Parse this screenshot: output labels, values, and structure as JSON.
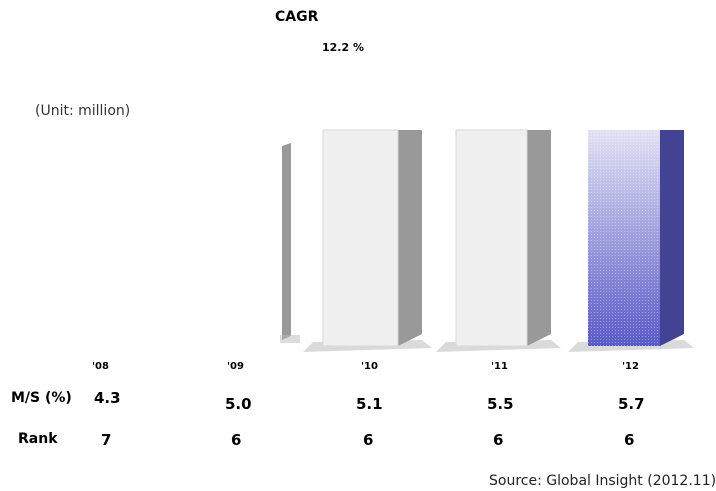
{
  "chart_data": {
    "type": "bar",
    "title": "CAGR",
    "cagr_value": "12.2 %",
    "unit": "(Unit: million)",
    "categories": [
      "'08",
      "'09",
      "'10",
      "'11",
      "'12"
    ],
    "values": [
      null,
      null,
      5.1,
      5.5,
      5.7
    ],
    "ms_label": "M/S (%)",
    "ms_values": [
      "4.3",
      "5.0",
      "5.1",
      "5.5",
      "5.7"
    ],
    "rank_label": "Rank",
    "rank_values": [
      "7",
      "6",
      "6",
      "6",
      "6"
    ],
    "source": "Source: Global Insight (2012.11)",
    "colors": {
      "bar_face": "#f0f0f0",
      "bar_side": "#999999",
      "highlight_top": "#d4d4ee",
      "highlight_bottom": "#5a5ac8",
      "highlight_side": "#434394"
    }
  }
}
